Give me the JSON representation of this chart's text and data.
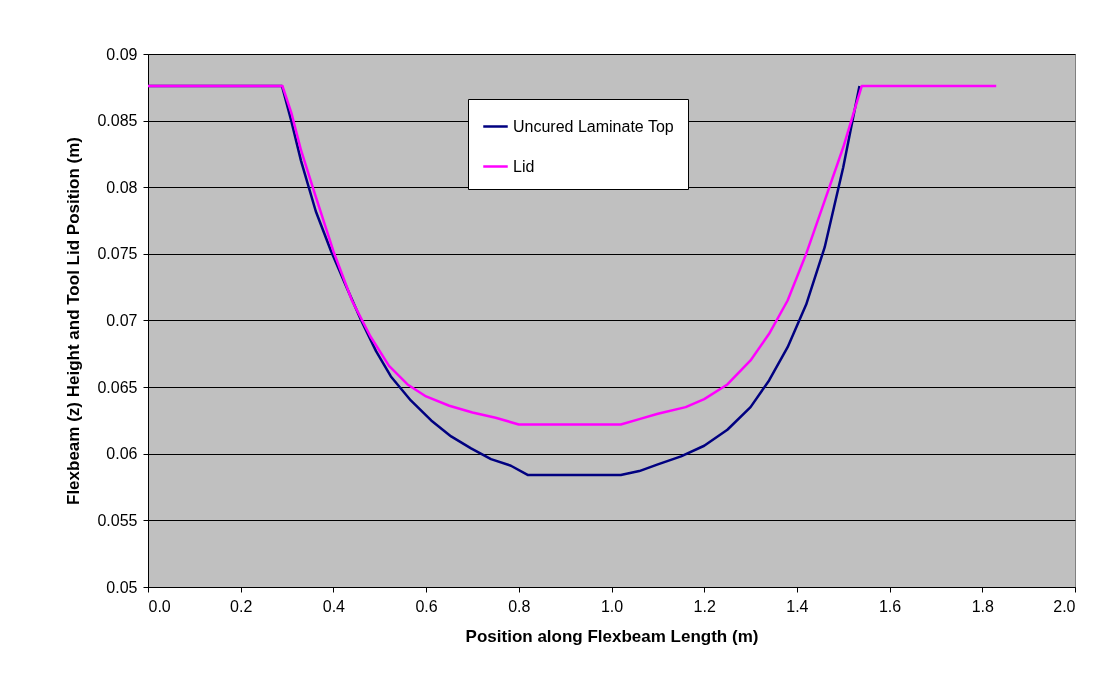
{
  "chart_data": {
    "type": "line",
    "xlabel": "Position along Flexbeam Length (m)",
    "ylabel": "Flexbeam (z) Height and Tool Lid Position (m)",
    "xlim": [
      0,
      2
    ],
    "xticks": [
      {
        "value": 0,
        "label": "0.0"
      },
      0.2,
      0.4,
      0.6,
      0.8,
      {
        "value": 1,
        "label": "1.0"
      },
      1.2,
      1.4,
      1.6,
      1.8,
      {
        "value": 2,
        "label": "2.0"
      }
    ],
    "ylim": [
      0.05,
      0.09
    ],
    "yticks": [
      0.05,
      0.055,
      0.06,
      0.065,
      0.07,
      0.075,
      0.08,
      0.085,
      0.09
    ],
    "grid": "y",
    "legend": "top",
    "marker": "none",
    "line_style": "solid",
    "series": [
      {
        "name": "Uncured Laminate Top",
        "color": "#000080",
        "x": [
          0,
          0.289,
          0.309,
          0.33,
          0.362,
          0.395,
          0.427,
          0.46,
          0.492,
          0.524,
          0.567,
          0.611,
          0.654,
          0.697,
          0.74,
          0.783,
          0.82,
          1.02,
          1.06,
          1.1,
          1.15,
          1.2,
          1.25,
          1.3,
          1.34,
          1.38,
          1.42,
          1.46,
          1.48,
          1.5,
          1.52,
          1.535
        ],
        "values": [
          0.0876,
          0.0876,
          0.085,
          0.082,
          0.0782,
          0.0752,
          0.0726,
          0.07,
          0.0677,
          0.0658,
          0.064,
          0.0625,
          0.0613,
          0.0604,
          0.0596,
          0.0591,
          0.0584,
          0.0584,
          0.0587,
          0.0592,
          0.0598,
          0.0606,
          0.0618,
          0.0635,
          0.0655,
          0.068,
          0.0712,
          0.0755,
          0.0785,
          0.0815,
          0.085,
          0.0876
        ]
      },
      {
        "name": "Lid",
        "color": "#ff00ff",
        "x": [
          0,
          0.29,
          0.31,
          0.33,
          0.36,
          0.4,
          0.44,
          0.48,
          0.52,
          0.56,
          0.6,
          0.65,
          0.7,
          0.75,
          0.8,
          1.02,
          1.06,
          1.1,
          1.16,
          1.2,
          1.25,
          1.3,
          1.34,
          1.38,
          1.42,
          1.46,
          1.5,
          1.54,
          1.83
        ],
        "values": [
          0.0876,
          0.0876,
          0.0855,
          0.0828,
          0.0795,
          0.0752,
          0.0715,
          0.0688,
          0.0666,
          0.0652,
          0.0643,
          0.0636,
          0.0631,
          0.0627,
          0.0622,
          0.0622,
          0.0626,
          0.063,
          0.0635,
          0.0641,
          0.0652,
          0.067,
          0.069,
          0.0715,
          0.075,
          0.079,
          0.083,
          0.0876,
          0.0876
        ]
      }
    ]
  }
}
